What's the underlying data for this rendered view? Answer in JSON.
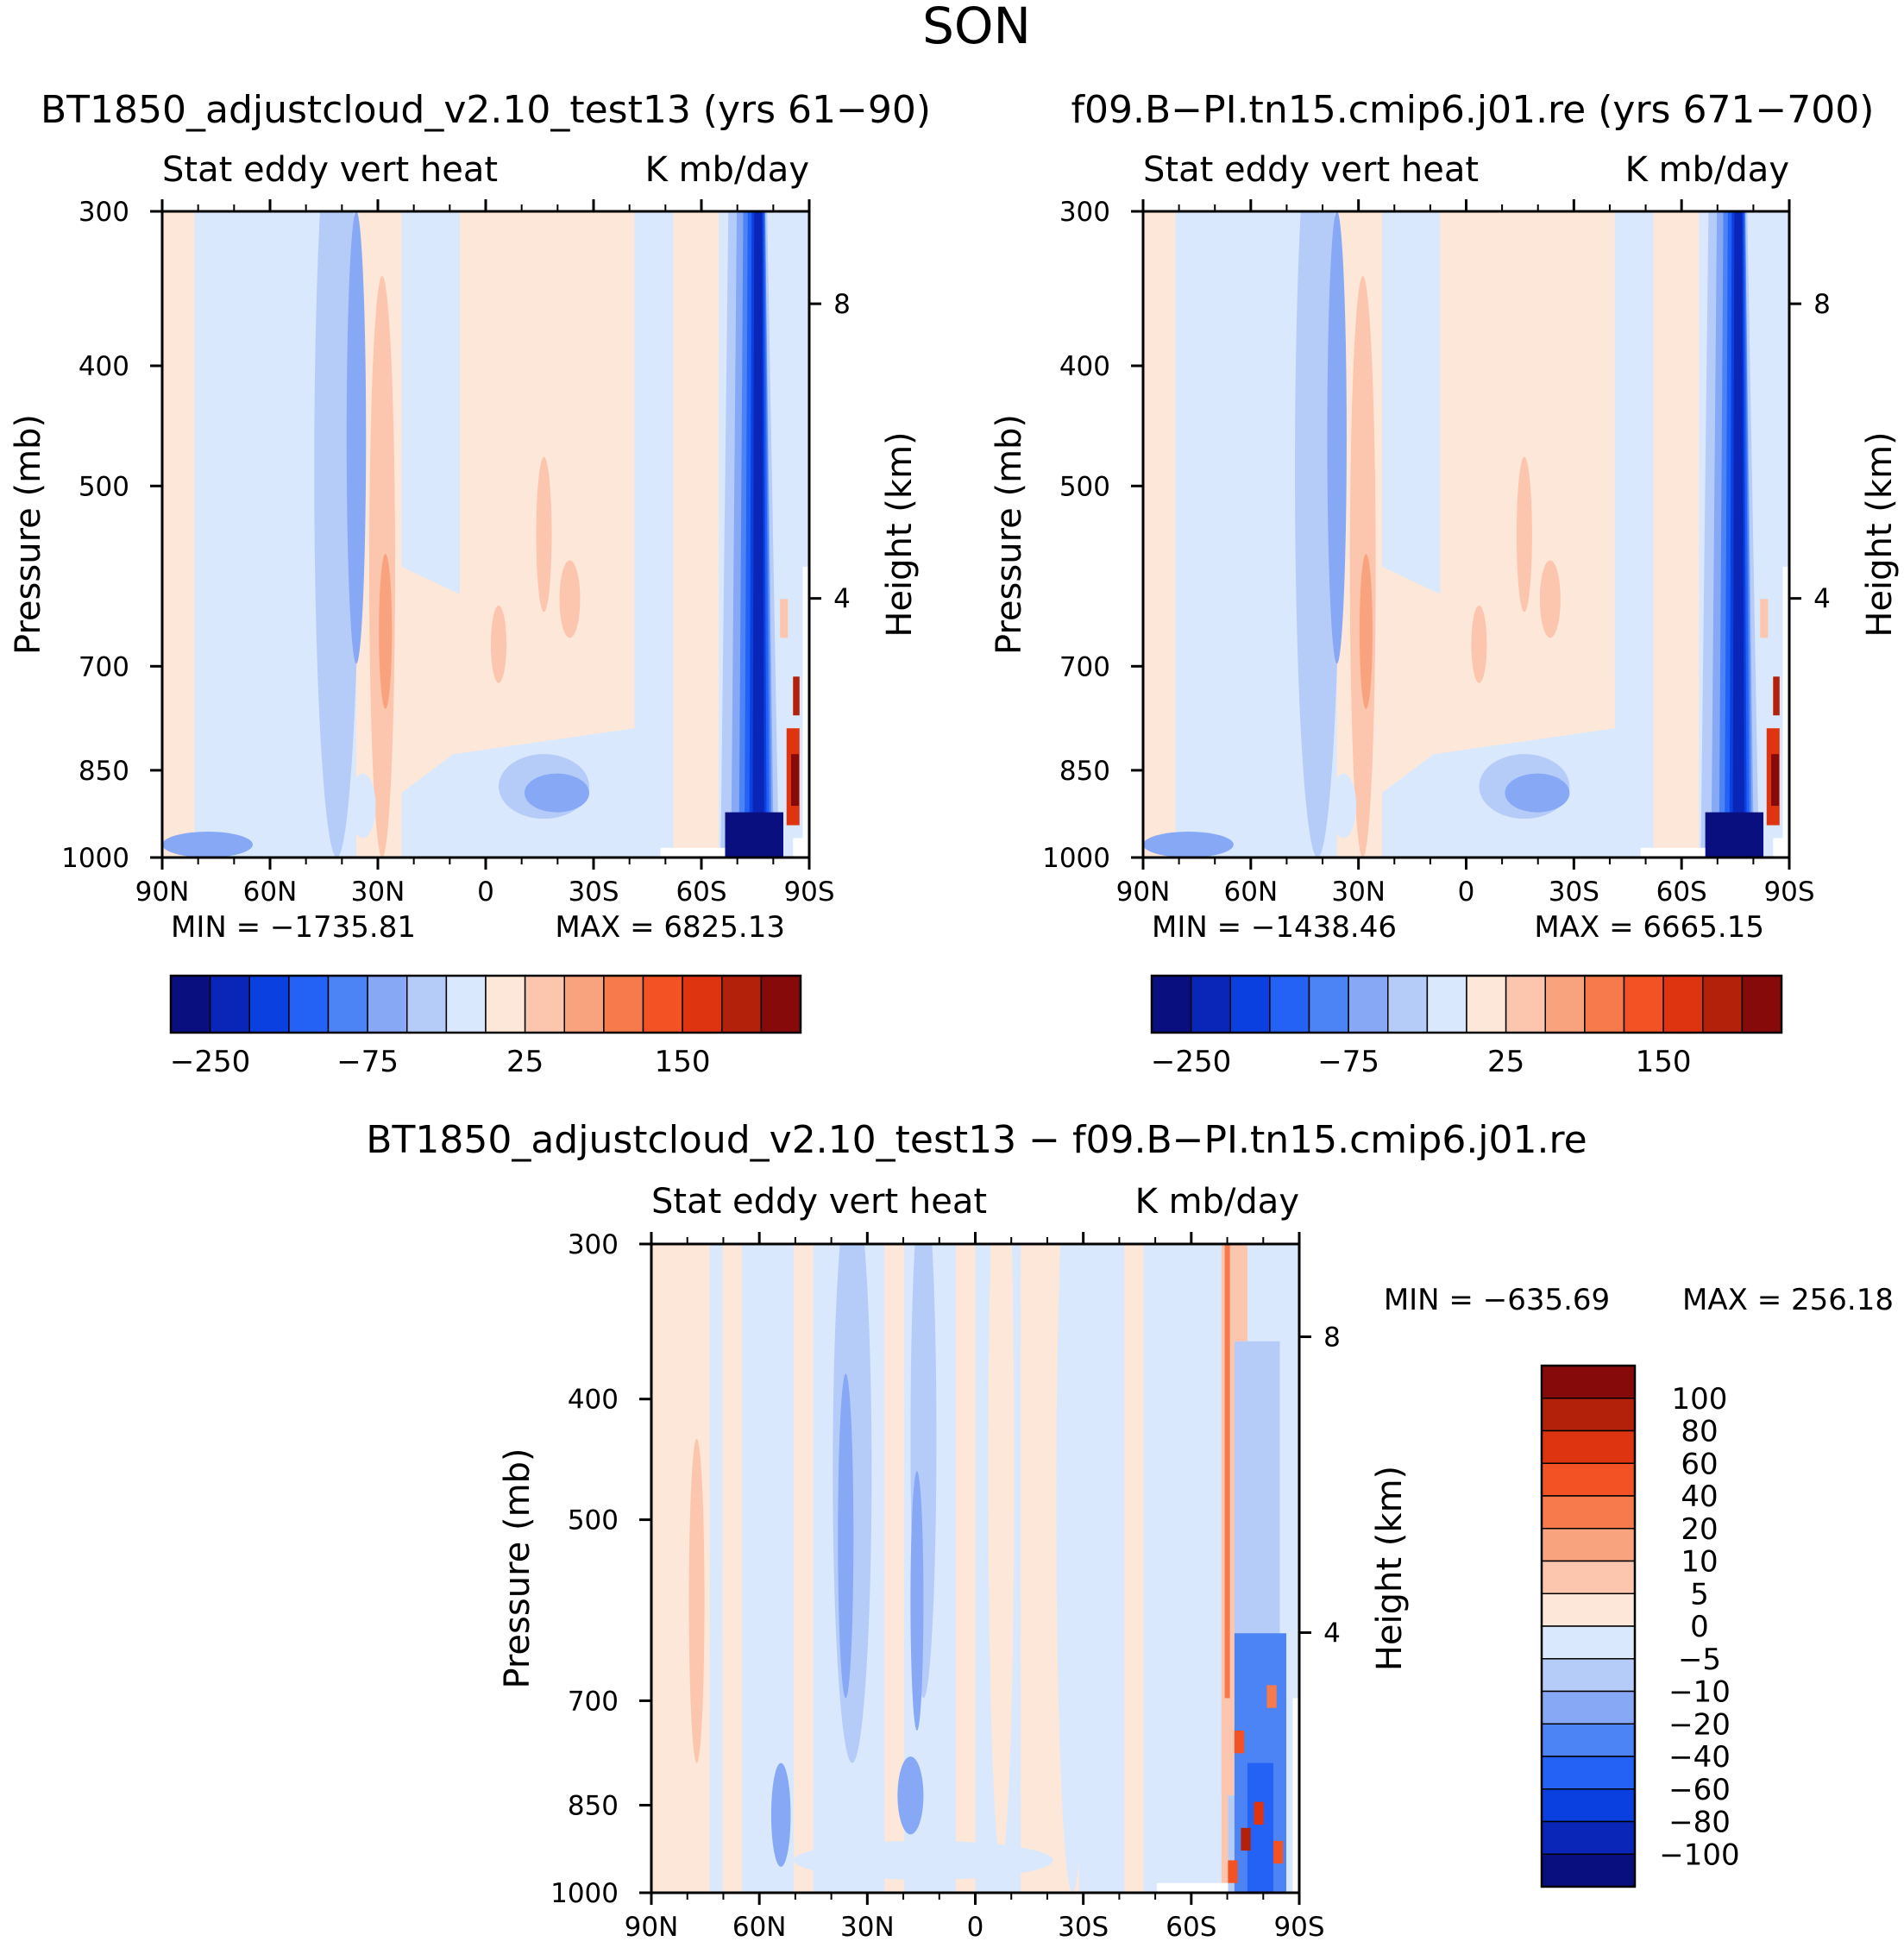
{
  "season_title": "SON",
  "chart_data": [
    {
      "id": "panel-a",
      "type": "heatmap",
      "title": "BT1850_adjustcloud_v2.10_test13 (yrs 61−90)",
      "subtitle_left": "Stat eddy vert heat",
      "subtitle_right": "K mb/day",
      "ylabel": "Pressure (mb)",
      "ylabel_right": "Height (km)",
      "x_ticks": [
        "90N",
        "60N",
        "30N",
        "0",
        "30S",
        "60S",
        "90S"
      ],
      "x_range": [
        90,
        -90
      ],
      "y_ticks": [
        300,
        400,
        500,
        700,
        850,
        1000
      ],
      "y_range": [
        1000,
        300
      ],
      "height_ticks_km": [
        4,
        8
      ],
      "min_label": "MIN = −1735.81",
      "max_label": "MAX = 6825.13",
      "colorbar_labels": [
        "−250",
        "−75",
        "25",
        "150"
      ],
      "colorbar_orientation": "horizontal"
    },
    {
      "id": "panel-b",
      "type": "heatmap",
      "title": "f09.B−PI.tn15.cmip6.j01.re (yrs 671−700)",
      "subtitle_left": "Stat eddy vert heat",
      "subtitle_right": "K mb/day",
      "ylabel": "Pressure (mb)",
      "ylabel_right": "Height (km)",
      "x_ticks": [
        "90N",
        "60N",
        "30N",
        "0",
        "30S",
        "60S",
        "90S"
      ],
      "x_range": [
        90,
        -90
      ],
      "y_ticks": [
        300,
        400,
        500,
        700,
        850,
        1000
      ],
      "y_range": [
        1000,
        300
      ],
      "height_ticks_km": [
        4,
        8
      ],
      "min_label": "MIN = −1438.46",
      "max_label": "MAX = 6665.15",
      "colorbar_labels": [
        "−250",
        "−75",
        "25",
        "150"
      ],
      "colorbar_orientation": "horizontal"
    },
    {
      "id": "panel-diff",
      "type": "heatmap",
      "title": "BT1850_adjustcloud_v2.10_test13 − f09.B−PI.tn15.cmip6.j01.re",
      "subtitle_left": "Stat eddy vert heat",
      "subtitle_right": "K mb/day",
      "ylabel": "Pressure (mb)",
      "ylabel_right": "Height (km)",
      "x_ticks": [
        "90N",
        "60N",
        "30N",
        "0",
        "30S",
        "60S",
        "90S"
      ],
      "x_range": [
        90,
        -90
      ],
      "y_ticks": [
        300,
        400,
        500,
        700,
        850,
        1000
      ],
      "y_range": [
        1000,
        300
      ],
      "height_ticks_km": [
        4,
        8
      ],
      "min_label": "MIN = −635.69",
      "max_label": "MAX = 256.18",
      "colorbar_labels": [
        "100",
        "80",
        "60",
        "40",
        "20",
        "10",
        "5",
        "0",
        "−5",
        "−10",
        "−20",
        "−40",
        "−60",
        "−80",
        "−100"
      ],
      "colorbar_orientation": "vertical"
    }
  ],
  "palette": [
    "#0a0f7f",
    "#0a26b8",
    "#0a3fe0",
    "#2461f5",
    "#4d84f5",
    "#86a8f5",
    "#b6ccf8",
    "#d9e8fc",
    "#fde7d9",
    "#fbc6ad",
    "#f9a27e",
    "#f77a4c",
    "#f35324",
    "#de3410",
    "#b3210b",
    "#870a0a"
  ]
}
